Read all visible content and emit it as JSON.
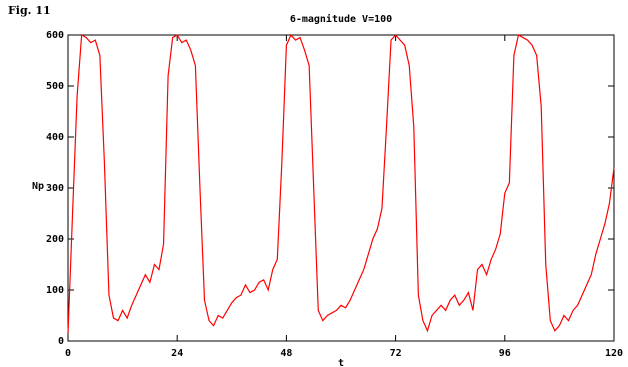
{
  "figure_label": "Fig. 11",
  "chart_data": {
    "type": "line",
    "title": "6-magnitude  V=100",
    "x_label": "t",
    "y_label": "Np",
    "x": [
      0,
      1,
      2,
      3,
      4,
      5,
      6,
      7,
      8,
      9,
      10,
      11,
      12,
      13,
      14,
      15,
      16,
      17,
      18,
      19,
      20,
      21,
      22,
      23,
      24,
      25,
      26,
      27,
      28,
      29,
      30,
      31,
      32,
      33,
      34,
      35,
      36,
      37,
      38,
      39,
      40,
      41,
      42,
      43,
      44,
      45,
      46,
      47,
      48,
      49,
      50,
      51,
      52,
      53,
      54,
      55,
      56,
      57,
      58,
      59,
      60,
      61,
      62,
      63,
      64,
      65,
      66,
      67,
      68,
      69,
      70,
      71,
      72,
      73,
      74,
      75,
      76,
      77,
      78,
      79,
      80,
      81,
      82,
      83,
      84,
      85,
      86,
      87,
      88,
      89,
      90,
      91,
      92,
      93,
      94,
      95,
      96,
      97,
      98,
      99,
      100,
      101,
      102,
      103,
      104,
      105,
      106,
      107,
      108,
      109,
      110,
      111,
      112,
      113,
      114,
      115,
      116,
      117,
      118,
      119,
      120
    ],
    "series": [
      {
        "name": "Np",
        "color": "#ff0000",
        "values": [
          15,
          250,
          480,
          600,
          595,
          585,
          590,
          560,
          350,
          90,
          45,
          40,
          60,
          45,
          70,
          90,
          110,
          130,
          115,
          150,
          140,
          190,
          520,
          595,
          600,
          585,
          590,
          570,
          540,
          300,
          80,
          40,
          30,
          50,
          45,
          60,
          75,
          85,
          90,
          110,
          95,
          100,
          115,
          120,
          100,
          140,
          160,
          350,
          580,
          600,
          590,
          595,
          570,
          540,
          300,
          60,
          40,
          50,
          55,
          60,
          70,
          65,
          80,
          100,
          120,
          140,
          170,
          200,
          220,
          260,
          420,
          590,
          600,
          590,
          580,
          540,
          420,
          90,
          40,
          20,
          50,
          60,
          70,
          60,
          80,
          90,
          70,
          80,
          95,
          60,
          140,
          150,
          130,
          160,
          180,
          210,
          290,
          310,
          560,
          600,
          595,
          590,
          580,
          560,
          460,
          150,
          40,
          20,
          30,
          50,
          40,
          60,
          70,
          90,
          110,
          130,
          170,
          200,
          230,
          270,
          340
        ]
      }
    ],
    "xlim": [
      0,
      120
    ],
    "ylim": [
      0,
      600
    ],
    "xticks": [
      0,
      24,
      48,
      72,
      96,
      120
    ],
    "yticks": [
      0,
      100,
      200,
      300,
      400,
      500,
      600
    ]
  }
}
